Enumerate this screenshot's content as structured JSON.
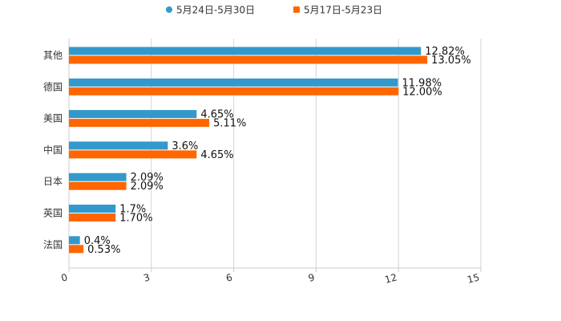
{
  "chart_data": {
    "type": "bar",
    "orientation": "horizontal",
    "categories": [
      "其他",
      "德国",
      "美国",
      "中国",
      "日本",
      "英国",
      "法国"
    ],
    "series": [
      {
        "name": "5月24日-5月30日",
        "color": "#3399CC",
        "values": [
          12.82,
          11.98,
          4.65,
          3.6,
          2.09,
          1.7,
          0.4
        ],
        "labels": [
          "12.82%",
          "11.98%",
          "4.65%",
          "3.6%",
          "2.09%",
          "1.7%",
          "0.4%"
        ]
      },
      {
        "name": "5月17日-5月23日",
        "color": "#FF6600",
        "values": [
          13.05,
          12.0,
          5.11,
          4.65,
          2.09,
          1.7,
          0.53
        ],
        "labels": [
          "13.05%",
          "12.00%",
          "5.11%",
          "4.65%",
          "2.09%",
          "1.70%",
          "0.53%"
        ]
      }
    ],
    "xlim": [
      0,
      15
    ],
    "xticks": [
      0,
      3,
      6,
      9,
      12,
      15
    ],
    "xtick_labels": [
      "0",
      "3",
      "6",
      "9",
      "12",
      "15"
    ],
    "grid": true,
    "legend_position": "top-center"
  }
}
